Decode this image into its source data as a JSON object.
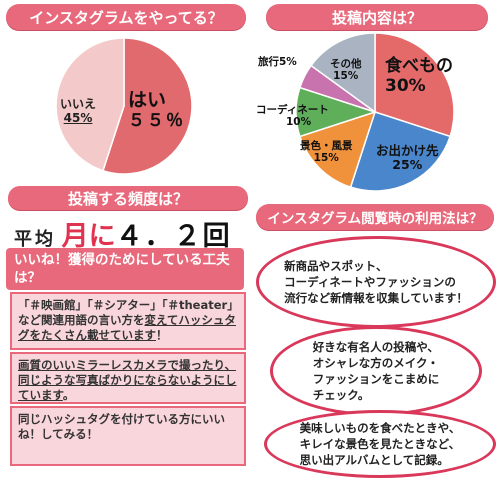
{
  "chart_data": [
    {
      "type": "pie",
      "title": "インスタグラムをやってる？",
      "slices": [
        {
          "label": "はい",
          "pct_text": "５５％",
          "value": 55,
          "color": "#e16a6e"
        },
        {
          "label": "いいえ",
          "pct_text": "45%",
          "value": 45,
          "color": "#f4c9c9"
        }
      ]
    },
    {
      "type": "pie",
      "title": "投稿内容は？",
      "slices": [
        {
          "label": "食べもの",
          "pct_text": "30%",
          "value": 30,
          "color": "#e46a6a"
        },
        {
          "label": "お出かけ先",
          "pct_text": "25%",
          "value": 25,
          "color": "#4a86cc"
        },
        {
          "label": "景色・風景",
          "pct_text": "15%",
          "value": 15,
          "color": "#f0923c"
        },
        {
          "label": "コーディネート",
          "pct_text": "10%",
          "value": 10,
          "color": "#5fae5a"
        },
        {
          "label": "旅行",
          "pct_text": "5%",
          "value": 5,
          "color": "#c873ad"
        },
        {
          "label": "その他",
          "pct_text": "15%",
          "value": 15,
          "color": "#a9b3c2"
        }
      ]
    }
  ],
  "frequency": {
    "title": "投稿する頻度は？",
    "prefix": "平均",
    "unit": "月に",
    "value": "４．２回"
  },
  "tips": {
    "title": "いいね！獲得のためにしている工夫は？",
    "items": [
      {
        "pre": "「＃映画館」「＃シアター」「＃theater」など関連用語の言い方を",
        "em": "変えてハッシュタグをたくさん載せています",
        "post": "！"
      },
      {
        "pre": "",
        "em": "画質のいいミラーレスカメラで撮ったり、同じような写真ばかりにならないようにしています",
        "post": "。"
      },
      {
        "pre": "同じハッシュタグを付けている方にいいね！してみる！",
        "em": "",
        "post": ""
      }
    ]
  },
  "usage": {
    "title": "インスタグラム閲覧時の利用法は？",
    "items": [
      "新商品やスポット、\nコーディネートやファッションの\n流行など新情報を収集しています！",
      "好きな有名人の投稿や、\nオシャレな方のメイク・\nファッションをこまめに\nチェック。",
      "美味しいものを食べたときや、\nキレイな景色を見たときなど、\n思い出アルバムとして記録。"
    ]
  },
  "colors": {
    "banner": "#e8697b",
    "accent": "#d9385a"
  }
}
